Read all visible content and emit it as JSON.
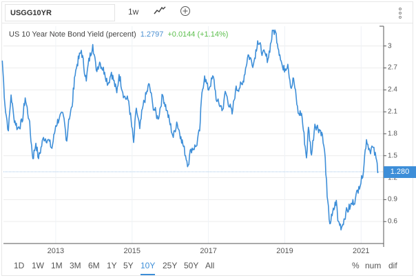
{
  "toolbar": {
    "symbol": "USGG10YR",
    "interval": "1w",
    "chart_type_icon": "line-chart-icon",
    "add_icon": "plus-circle-icon",
    "menu_icon": "vertical-dots-icon"
  },
  "header": {
    "title": "US 10 Year Note Bond Yield (percent)",
    "value": "1.2797",
    "change": "+0.0144 (+1.14%)"
  },
  "last_price_label": "1.280",
  "ranges": [
    "1D",
    "1W",
    "1M",
    "3M",
    "6M",
    "1Y",
    "5Y",
    "10Y",
    "25Y",
    "50Y",
    "All"
  ],
  "active_range": "10Y",
  "modes": [
    "%",
    "num",
    "dif"
  ],
  "colors": {
    "line": "#3d8ed8",
    "change": "#5cbf4d"
  },
  "chart_data": {
    "type": "line",
    "title": "US 10 Year Note Bond Yield (percent)",
    "xlabel": "",
    "ylabel": "",
    "xlim": [
      2011.63,
      2021.59
    ],
    "ylim": [
      0.3,
      3.27
    ],
    "x_ticks": [
      "2013",
      "2015",
      "2017",
      "2019",
      "2021"
    ],
    "x_tick_values": [
      2013,
      2015,
      2017,
      2019,
      2021
    ],
    "y_ticks": [
      "0.6",
      "0.9",
      "1.2",
      "1.5",
      "1.8",
      "2.1",
      "2.4",
      "2.7",
      "3"
    ],
    "y_tick_values": [
      0.6,
      0.9,
      1.2,
      1.5,
      1.8,
      2.1,
      2.4,
      2.7,
      3.0
    ],
    "grid": true,
    "last_value": 1.28,
    "series": [
      {
        "name": "USGG10YR",
        "points": [
          [
            2011.6,
            2.8
          ],
          [
            2011.67,
            2.19
          ],
          [
            2011.76,
            1.84
          ],
          [
            2011.83,
            2.33
          ],
          [
            2011.9,
            2.03
          ],
          [
            2012.0,
            1.87
          ],
          [
            2012.12,
            1.96
          ],
          [
            2012.2,
            2.29
          ],
          [
            2012.3,
            2.0
          ],
          [
            2012.4,
            1.46
          ],
          [
            2012.48,
            1.67
          ],
          [
            2012.55,
            1.46
          ],
          [
            2012.68,
            1.75
          ],
          [
            2012.8,
            1.72
          ],
          [
            2012.9,
            1.6
          ],
          [
            2013.0,
            1.91
          ],
          [
            2013.1,
            2.03
          ],
          [
            2013.2,
            2.05
          ],
          [
            2013.29,
            1.7
          ],
          [
            2013.34,
            2.0
          ],
          [
            2013.43,
            2.17
          ],
          [
            2013.49,
            2.57
          ],
          [
            2013.56,
            2.75
          ],
          [
            2013.67,
            2.94
          ],
          [
            2013.8,
            2.52
          ],
          [
            2013.85,
            2.75
          ],
          [
            2013.97,
            3.02
          ],
          [
            2014.06,
            2.67
          ],
          [
            2014.15,
            2.78
          ],
          [
            2014.28,
            2.64
          ],
          [
            2014.37,
            2.48
          ],
          [
            2014.46,
            2.64
          ],
          [
            2014.6,
            2.36
          ],
          [
            2014.66,
            2.61
          ],
          [
            2014.79,
            2.31
          ],
          [
            2014.91,
            2.25
          ],
          [
            2015.04,
            1.68
          ],
          [
            2015.11,
            2.15
          ],
          [
            2015.2,
            1.87
          ],
          [
            2015.29,
            2.19
          ],
          [
            2015.45,
            2.48
          ],
          [
            2015.54,
            2.2
          ],
          [
            2015.68,
            2.0
          ],
          [
            2015.8,
            2.33
          ],
          [
            2015.91,
            2.12
          ],
          [
            2016.08,
            1.75
          ],
          [
            2016.17,
            1.96
          ],
          [
            2016.28,
            1.76
          ],
          [
            2016.47,
            1.37
          ],
          [
            2016.54,
            1.59
          ],
          [
            2016.68,
            1.63
          ],
          [
            2016.77,
            1.84
          ],
          [
            2016.83,
            2.36
          ],
          [
            2016.9,
            2.59
          ],
          [
            2016.99,
            2.4
          ],
          [
            2017.13,
            2.58
          ],
          [
            2017.22,
            2.24
          ],
          [
            2017.39,
            2.14
          ],
          [
            2017.44,
            2.38
          ],
          [
            2017.62,
            2.07
          ],
          [
            2017.71,
            2.4
          ],
          [
            2017.89,
            2.47
          ],
          [
            2018.04,
            2.88
          ],
          [
            2018.18,
            2.75
          ],
          [
            2018.29,
            3.07
          ],
          [
            2018.42,
            2.91
          ],
          [
            2018.56,
            2.82
          ],
          [
            2018.69,
            3.21
          ],
          [
            2018.76,
            3.19
          ],
          [
            2018.87,
            2.88
          ],
          [
            2018.96,
            2.67
          ],
          [
            2019.08,
            2.75
          ],
          [
            2019.17,
            2.42
          ],
          [
            2019.23,
            2.56
          ],
          [
            2019.35,
            2.08
          ],
          [
            2019.44,
            2.08
          ],
          [
            2019.57,
            1.47
          ],
          [
            2019.62,
            1.89
          ],
          [
            2019.7,
            1.51
          ],
          [
            2019.79,
            1.93
          ],
          [
            2019.97,
            1.82
          ],
          [
            2020.06,
            1.47
          ],
          [
            2020.11,
            0.94
          ],
          [
            2020.18,
            0.57
          ],
          [
            2020.24,
            0.68
          ],
          [
            2020.35,
            0.89
          ],
          [
            2020.39,
            0.61
          ],
          [
            2020.49,
            0.52
          ],
          [
            2020.6,
            0.72
          ],
          [
            2020.72,
            0.81
          ],
          [
            2020.85,
            0.91
          ],
          [
            2020.94,
            1.08
          ],
          [
            2021.03,
            1.19
          ],
          [
            2021.14,
            1.72
          ],
          [
            2021.23,
            1.57
          ],
          [
            2021.3,
            1.62
          ],
          [
            2021.39,
            1.47
          ],
          [
            2021.45,
            1.28
          ]
        ]
      }
    ]
  }
}
